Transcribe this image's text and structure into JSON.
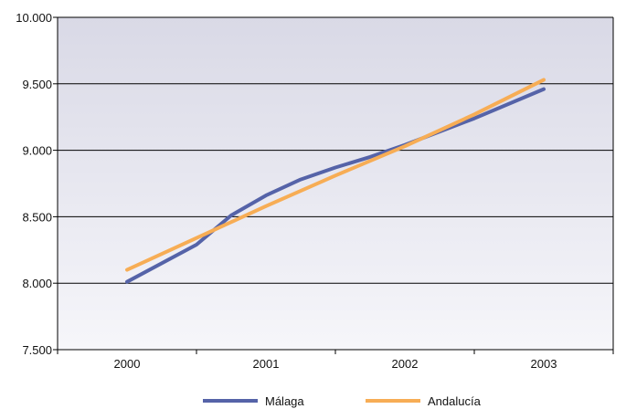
{
  "chart_data": {
    "type": "line",
    "x": [
      "2000",
      "2001",
      "2002",
      "2003"
    ],
    "ylim": [
      7500,
      10000
    ],
    "y_tick_values": [
      7500,
      8000,
      8500,
      9000,
      9500,
      10000
    ],
    "y_tick_labels": [
      "7.500",
      "8.000",
      "8.500",
      "9.000",
      "9.500",
      "10.000"
    ],
    "grid": true,
    "legend_position": "bottom",
    "series": [
      {
        "name": "Málaga",
        "color": "#5563a8",
        "x": [
          2000,
          2000.5,
          2000.75,
          2001,
          2001.25,
          2001.5,
          2001.75,
          2002,
          2002.5,
          2003
        ],
        "values": [
          8010,
          8290,
          8510,
          8660,
          8780,
          8870,
          8950,
          9040,
          9240,
          9460
        ]
      },
      {
        "name": "Andalucía",
        "color": "#f7ad55",
        "x": [
          2000,
          2000.5,
          2001,
          2001.5,
          2002,
          2002.5,
          2003
        ],
        "values": [
          8100,
          8340,
          8580,
          8810,
          9030,
          9270,
          9530
        ]
      }
    ]
  }
}
